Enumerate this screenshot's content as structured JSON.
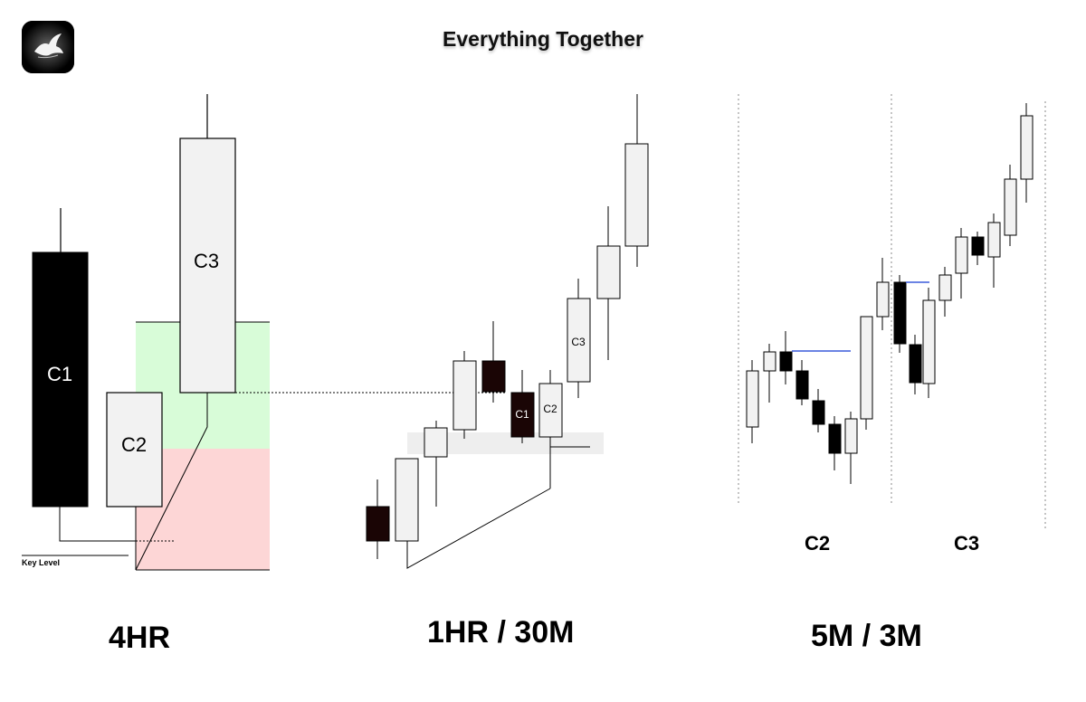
{
  "title": "Everything Together",
  "key_level_label": "Key Level",
  "timeframes": {
    "htf": "4HR",
    "mtf": "1HR / 30M",
    "ltf": "5M / 3M"
  },
  "htf_candles": {
    "c1": "C1",
    "c2": "C2",
    "c3": "C3"
  },
  "mtf_candles": {
    "c1": "C1",
    "c2": "C2",
    "c3": "C3"
  },
  "ltf_sections": {
    "c2": "C2",
    "c3": "C3"
  },
  "colors": {
    "bearish": "#000000",
    "bullish": "#f2f2f2",
    "green_zone": "#d8fcd8",
    "red_zone": "#fdd6d6",
    "grey_zone": "#eeeeee",
    "level_line": "#3b5bdb"
  }
}
